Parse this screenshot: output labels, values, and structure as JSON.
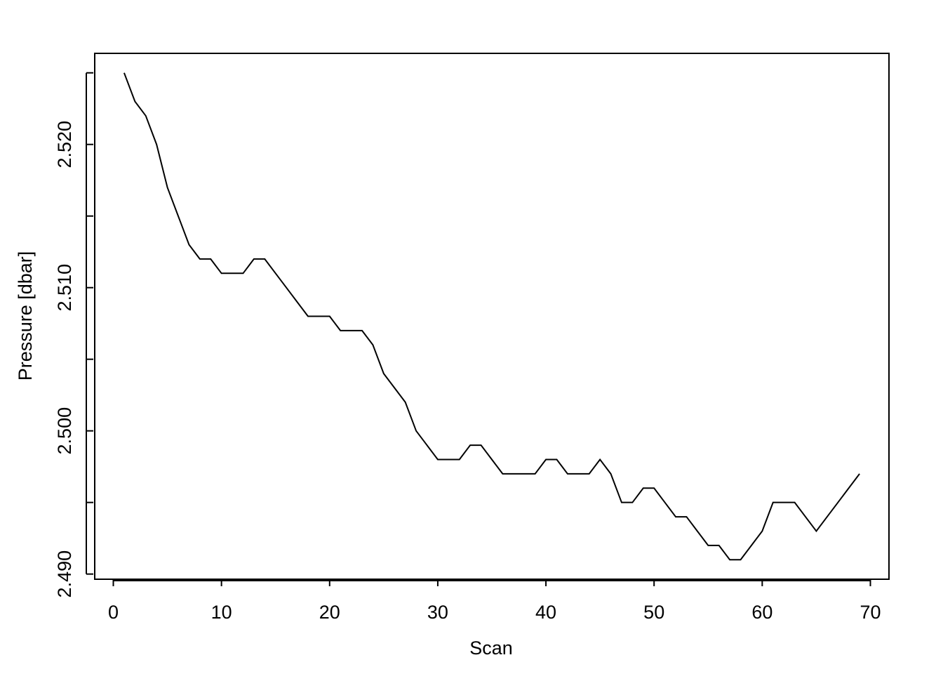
{
  "chart_data": {
    "type": "line",
    "xlabel": "Scan",
    "ylabel": "Pressure [dbar]",
    "x": [
      1,
      2,
      3,
      4,
      5,
      6,
      7,
      8,
      9,
      10,
      11,
      12,
      13,
      14,
      15,
      16,
      17,
      18,
      19,
      20,
      21,
      22,
      23,
      24,
      25,
      26,
      27,
      28,
      29,
      30,
      31,
      32,
      33,
      34,
      35,
      36,
      37,
      38,
      39,
      40,
      41,
      42,
      43,
      44,
      45,
      46,
      47,
      48,
      49,
      50,
      51,
      52,
      53,
      54,
      55,
      56,
      57,
      58,
      59,
      60,
      61,
      62,
      63,
      64,
      65,
      66,
      67,
      68,
      69
    ],
    "series": [
      {
        "color": "#000000",
        "values": [
          2.525,
          2.523,
          2.522,
          2.52,
          2.517,
          2.515,
          2.513,
          2.512,
          2.512,
          2.511,
          2.511,
          2.511,
          2.512,
          2.512,
          2.511,
          2.51,
          2.509,
          2.508,
          2.508,
          2.508,
          2.507,
          2.507,
          2.507,
          2.506,
          2.504,
          2.503,
          2.502,
          2.5,
          2.499,
          2.498,
          2.498,
          2.498,
          2.499,
          2.499,
          2.498,
          2.497,
          2.497,
          2.497,
          2.497,
          2.498,
          2.498,
          2.497,
          2.497,
          2.497,
          2.498,
          2.497,
          2.495,
          2.495,
          2.496,
          2.496,
          2.495,
          2.494,
          2.494,
          2.493,
          2.492,
          2.492,
          2.491,
          2.491,
          2.492,
          2.493,
          2.495,
          2.495,
          2.495,
          2.494,
          2.493,
          2.494,
          2.495,
          2.496,
          2.497
        ]
      }
    ],
    "xlim": [
      -1.72,
      71.72
    ],
    "xticks": [
      0,
      10,
      20,
      30,
      40,
      50,
      60,
      70
    ],
    "ylim": [
      2.48964,
      2.52636
    ],
    "yticks": [
      {
        "value": 2.49,
        "label": "2.490"
      },
      {
        "value": 2.5,
        "label": "2.500"
      },
      {
        "value": 2.51,
        "label": "2.510"
      },
      {
        "value": 2.52,
        "label": "2.520"
      }
    ],
    "yminor_ticks": [
      2.495,
      2.505,
      2.515,
      2.525
    ],
    "grid": false
  }
}
